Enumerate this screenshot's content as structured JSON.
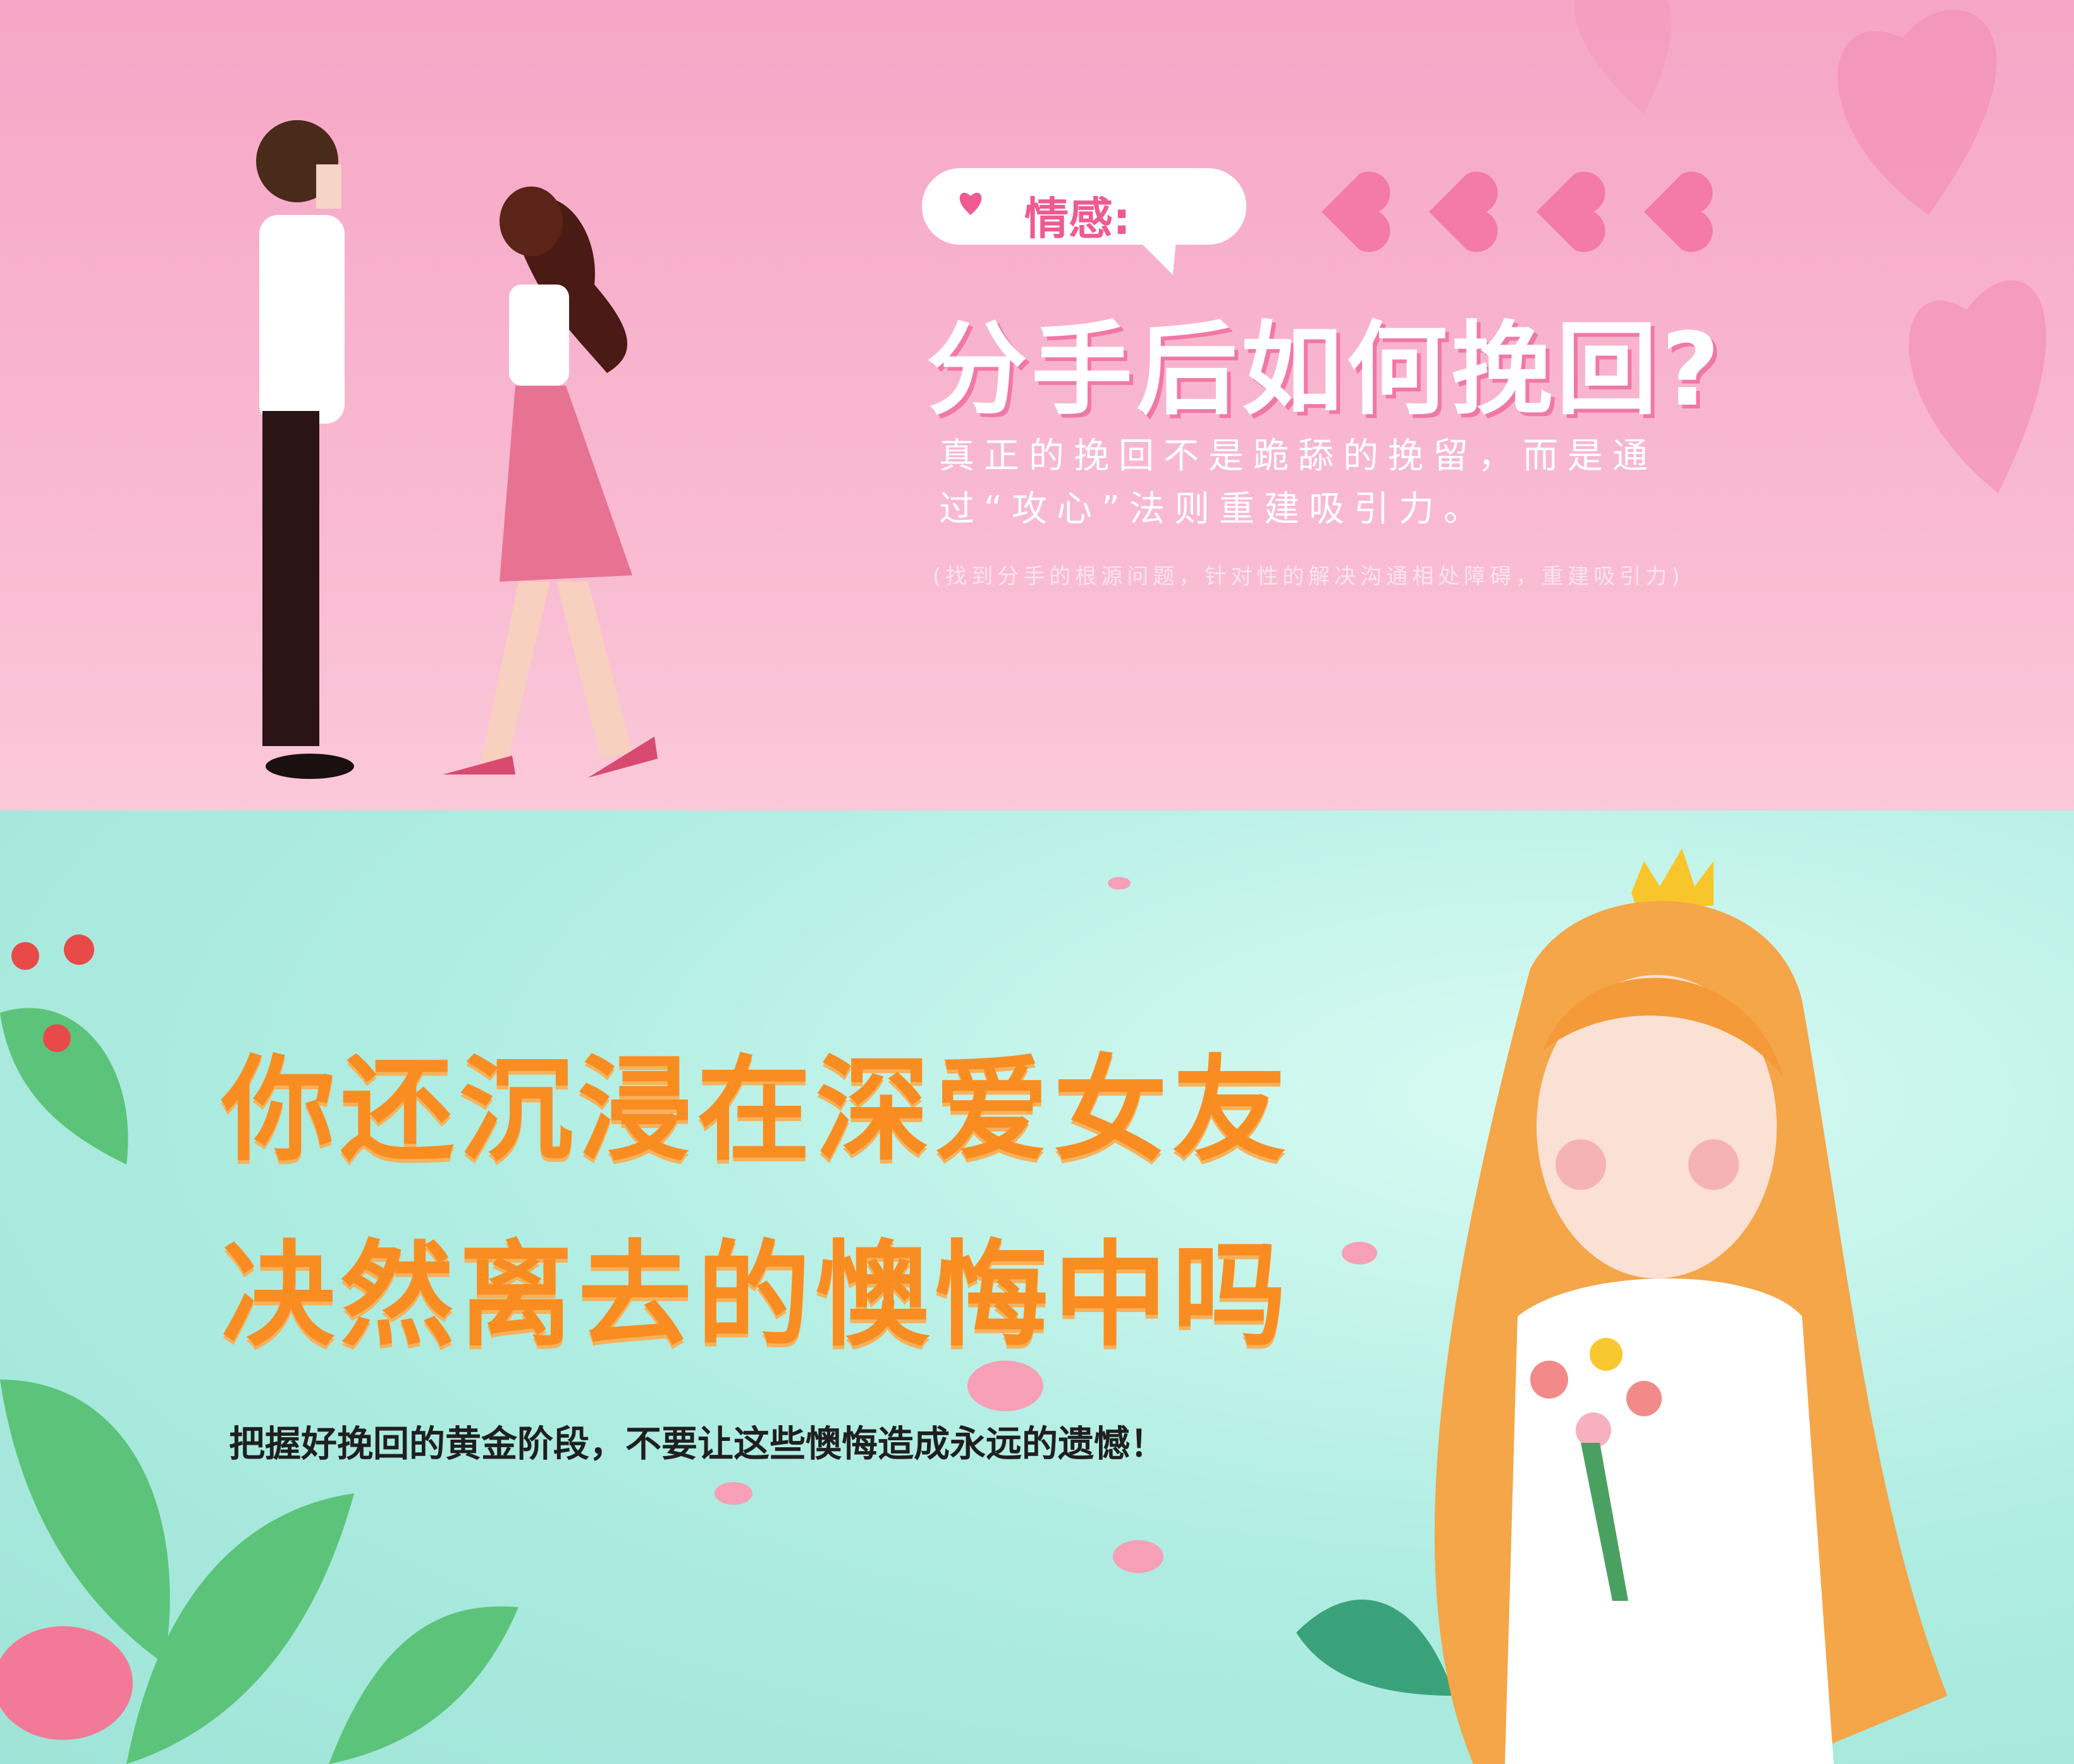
{
  "banners": [
    {
      "tag": "情感:",
      "title": "分手后如何挽回?",
      "subtitle": "真正的挽回不是跪舔的挽留，而是通过“攻心”法则重建吸引力。",
      "note": "(找到分手的根源问题，针对性的解决沟通相处障碍，重建吸引力)"
    },
    {
      "headline": [
        "你还沉浸在深爱女友",
        "决然离去的懊悔中吗"
      ],
      "subtitle": "把握好挽回的黄金阶段，不要让这些懊悔造成永远的遗憾！"
    }
  ]
}
